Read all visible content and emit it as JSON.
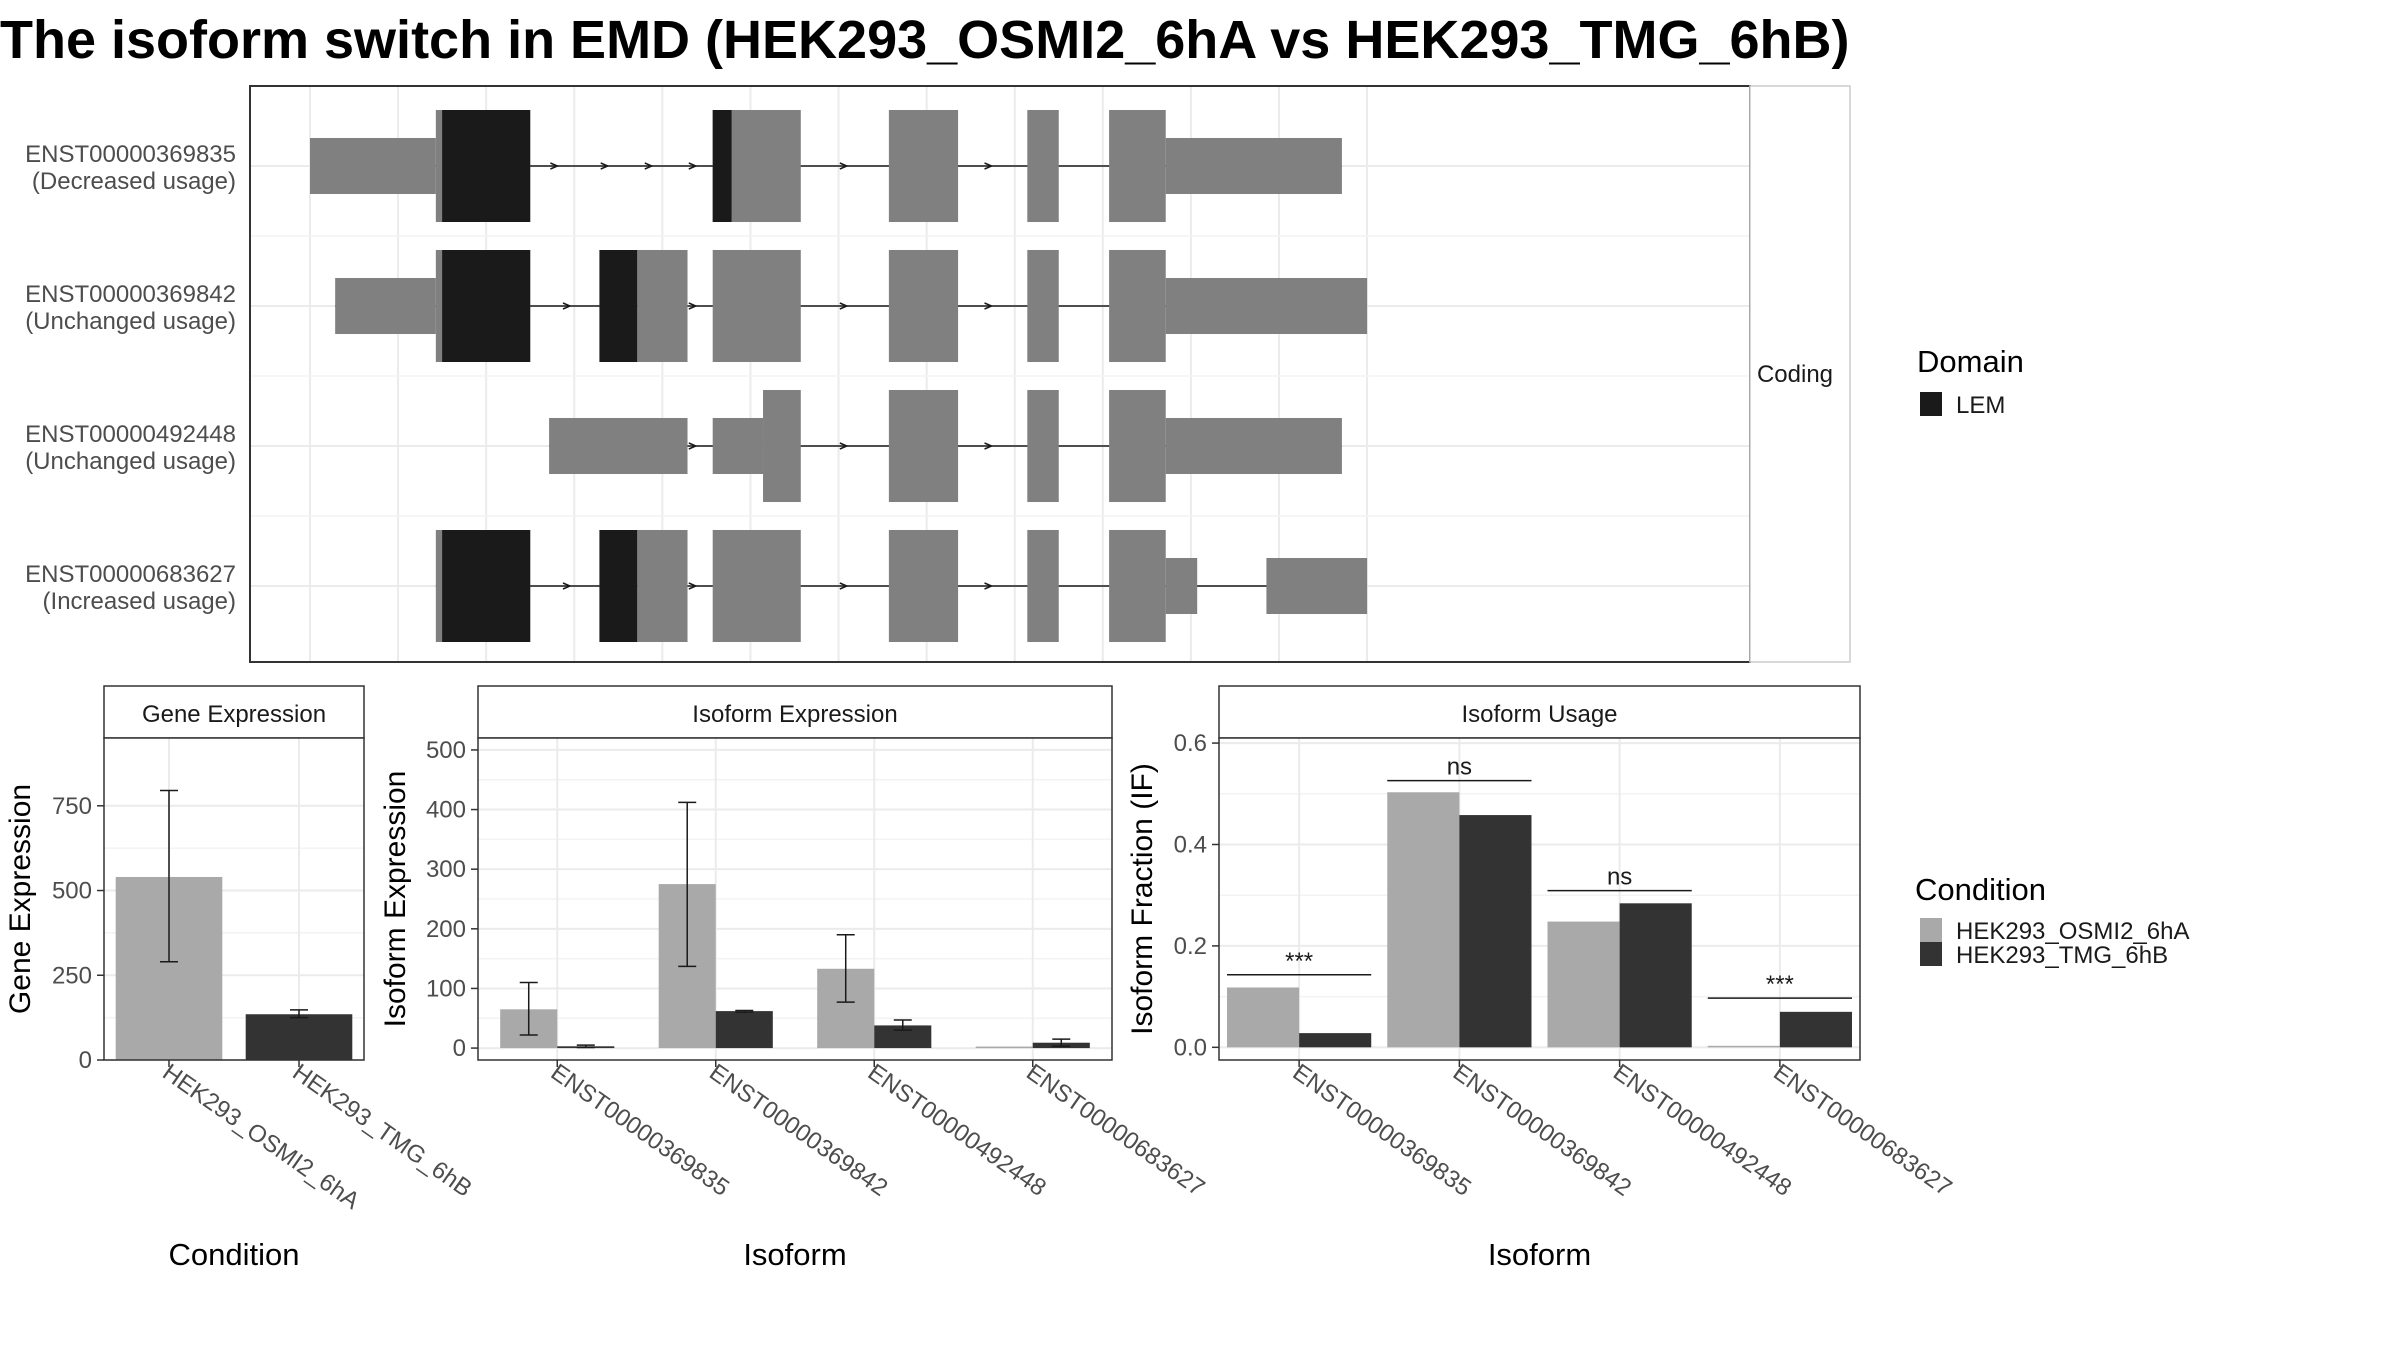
{
  "title": "The isoform switch in EMD (HEK293_OSMI2_6hA vs HEK293_TMG_6hB)",
  "colors": {
    "exon": "#808080",
    "domain": "#1a1a1a",
    "cond_a": "#a9a9a9",
    "cond_b": "#333333",
    "grid": "#ebebeb",
    "frame": "#333333"
  },
  "chart_data": [
    {
      "type": "gene-structure",
      "facet_label": "Coding",
      "x_range": [
        1,
        90
      ],
      "isoforms": [
        {
          "id": "ENST00000369835",
          "usage": "(Decreased usage)",
          "utr": [
            [
              1,
              11
            ],
            [
              69,
              83
            ]
          ],
          "cds": [
            [
              11,
              18.5
            ],
            [
              33,
              40
            ],
            [
              47,
              52.5
            ],
            [
              58,
              60.5
            ],
            [
              64.5,
              69
            ]
          ],
          "domain": [
            [
              11.5,
              18.5
            ],
            [
              33,
              34.5
            ]
          ],
          "arrows": [
            20.5,
            24.5,
            28,
            31.5,
            43.5,
            55
          ]
        },
        {
          "id": "ENST00000369842",
          "usage": "(Unchanged usage)",
          "utr": [
            [
              3,
              11
            ],
            [
              69,
              85
            ]
          ],
          "cds": [
            [
              11,
              18.5
            ],
            [
              24,
              27
            ],
            [
              27,
              31
            ],
            [
              33,
              40
            ],
            [
              47,
              52.5
            ],
            [
              58,
              60.5
            ],
            [
              64.5,
              69
            ]
          ],
          "domain": [
            [
              11.5,
              18.5
            ],
            [
              24,
              27
            ]
          ],
          "arrows": [
            21.5,
            31.5,
            43.5,
            55
          ]
        },
        {
          "id": "ENST00000492448",
          "usage": "(Unchanged usage)",
          "utr": [
            [
              20,
              31
            ],
            [
              33,
              37
            ],
            [
              69,
              83
            ]
          ],
          "cds": [
            [
              37,
              40
            ],
            [
              47,
              52.5
            ],
            [
              58,
              60.5
            ],
            [
              64.5,
              69
            ]
          ],
          "domain": [],
          "arrows": [
            31.5,
            43.5,
            55
          ]
        },
        {
          "id": "ENST00000683627",
          "usage": "(Increased usage)",
          "utr": [
            [
              69,
              71.5
            ],
            [
              77,
              85
            ]
          ],
          "cds": [
            [
              11,
              18.5
            ],
            [
              24,
              27
            ],
            [
              27,
              31
            ],
            [
              33,
              40
            ],
            [
              47,
              52.5
            ],
            [
              58,
              60.5
            ],
            [
              64.5,
              69
            ]
          ],
          "domain": [
            [
              11.5,
              18.5
            ],
            [
              24,
              27
            ]
          ],
          "arrows": [
            21.5,
            31.5,
            43.5,
            55
          ]
        }
      ],
      "legend_title": "Domain",
      "legend_items": [
        "LEM"
      ]
    },
    {
      "type": "bar",
      "panel": "Gene Expression",
      "categories": [
        "HEK293_OSMI2_6hA",
        "HEK293_TMG_6hB"
      ],
      "values": [
        540,
        135
      ],
      "error_low": [
        290,
        125
      ],
      "error_high": [
        795,
        148
      ],
      "ylabel": "Gene Expression",
      "xlabel": "Condition",
      "ylim": [
        0,
        950
      ],
      "yticks": [
        0,
        250,
        500,
        750
      ]
    },
    {
      "type": "bar",
      "panel": "Isoform Expression",
      "categories": [
        "ENST00000369835",
        "ENST00000369842",
        "ENST00000492448",
        "ENST00000683627"
      ],
      "series": [
        {
          "name": "HEK293_OSMI2_6hA",
          "values": [
            65,
            275,
            133,
            0
          ],
          "error_low": [
            22,
            137,
            77,
            0
          ],
          "error_high": [
            110,
            412,
            190,
            0
          ]
        },
        {
          "name": "HEK293_TMG_6hB",
          "values": [
            3,
            62,
            38,
            9
          ],
          "error_low": [
            1,
            60,
            30,
            3
          ],
          "error_high": [
            5,
            63,
            47,
            15
          ]
        }
      ],
      "ylabel": "Isoform Expression",
      "xlabel": "Isoform",
      "ylim": [
        -20,
        520
      ],
      "yticks": [
        0,
        100,
        200,
        300,
        400,
        500
      ]
    },
    {
      "type": "bar",
      "panel": "Isoform Usage",
      "categories": [
        "ENST00000369835",
        "ENST00000369842",
        "ENST00000492448",
        "ENST00000683627"
      ],
      "series": [
        {
          "name": "HEK293_OSMI2_6hA",
          "values": [
            0.118,
            0.503,
            0.248,
            0.0
          ]
        },
        {
          "name": "HEK293_TMG_6hB",
          "values": [
            0.028,
            0.458,
            0.284,
            0.07
          ]
        }
      ],
      "significance": [
        {
          "category": "ENST00000369835",
          "label": "***",
          "y": 0.143
        },
        {
          "category": "ENST00000369842",
          "label": "ns",
          "y": 0.526
        },
        {
          "category": "ENST00000492448",
          "label": "ns",
          "y": 0.309
        },
        {
          "category": "ENST00000683627",
          "label": "***",
          "y": 0.097
        }
      ],
      "ylabel": "Isoform Fraction (IF)",
      "xlabel": "Isoform",
      "ylim": [
        -0.025,
        0.61
      ],
      "yticks": [
        0.0,
        0.2,
        0.4,
        0.6
      ],
      "ytick_labels": [
        "0.0",
        "0.2",
        "0.4",
        "0.6"
      ]
    }
  ],
  "condition_legend": {
    "title": "Condition",
    "items": [
      "HEK293_OSMI2_6hA",
      "HEK293_TMG_6hB"
    ]
  }
}
